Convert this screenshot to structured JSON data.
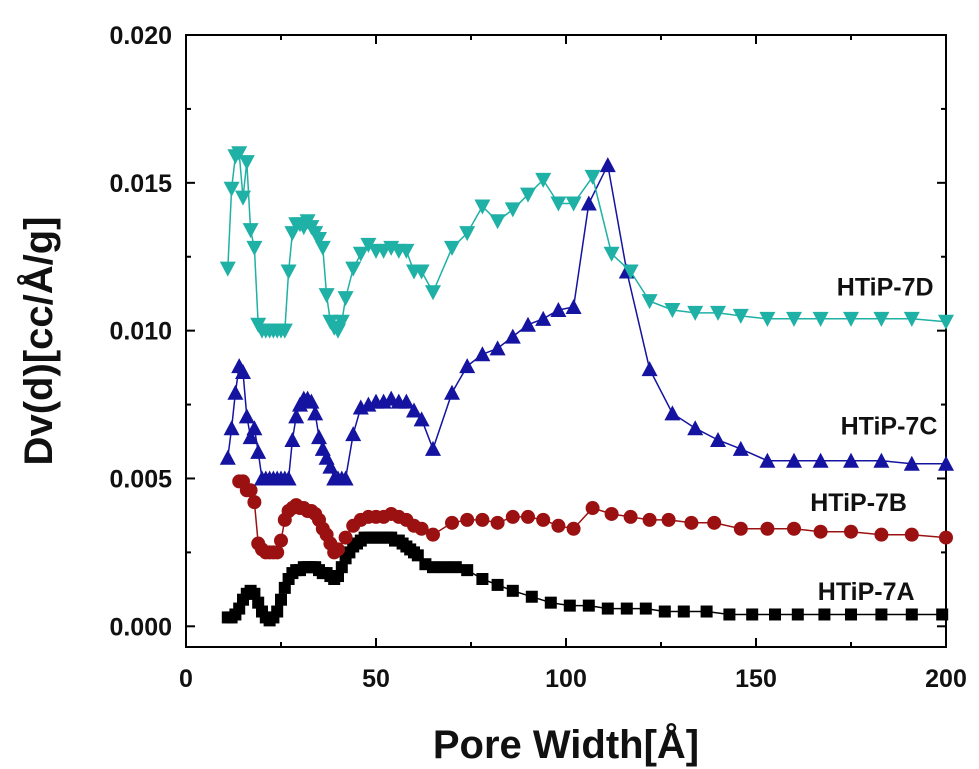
{
  "chart_data": {
    "type": "line",
    "title": "",
    "xlabel": "Pore Width[Å]",
    "ylabel": "Dv(d)[cc/Å/g]",
    "xlim": [
      0,
      200
    ],
    "ylim": [
      -0.0007,
      0.02
    ],
    "xticks": [
      0,
      50,
      100,
      150,
      200
    ],
    "xtick_labels": [
      "0",
      "50",
      "100",
      "150",
      "200"
    ],
    "yticks": [
      0.0,
      0.005,
      0.01,
      0.015,
      0.02
    ],
    "ytick_labels": [
      "0.000",
      "0.005",
      "0.010",
      "0.015",
      "0.020"
    ],
    "grid": false,
    "legend": "none",
    "series": [
      {
        "name": "HTiP-7A",
        "color": "#000000",
        "marker": "square",
        "x": [
          11,
          12,
          13,
          14,
          15,
          16,
          17,
          18,
          19,
          20,
          21,
          22,
          23,
          24,
          25,
          26,
          27,
          28,
          29,
          30,
          31,
          32,
          33,
          34,
          35,
          36,
          37,
          38,
          39,
          40,
          41,
          42,
          43,
          44,
          45,
          46,
          47,
          48,
          49,
          50,
          51,
          52,
          53,
          54,
          55,
          56,
          57,
          58,
          59,
          60,
          61,
          63,
          65,
          68,
          71,
          74,
          78,
          82,
          86,
          91,
          96,
          101,
          106,
          111,
          116,
          121,
          126,
          131,
          137,
          143,
          149,
          155,
          161,
          168,
          175,
          183,
          191,
          199
        ],
        "y": [
          0.0003,
          0.0003,
          0.0004,
          0.0006,
          0.0009,
          0.0011,
          0.0012,
          0.0011,
          0.0008,
          0.0005,
          0.0003,
          0.0002,
          0.0003,
          0.0005,
          0.0009,
          0.0013,
          0.0016,
          0.0018,
          0.0019,
          0.0019,
          0.002,
          0.002,
          0.002,
          0.002,
          0.0019,
          0.0018,
          0.0018,
          0.0017,
          0.0016,
          0.0017,
          0.002,
          0.0023,
          0.0025,
          0.0027,
          0.0028,
          0.0029,
          0.003,
          0.003,
          0.003,
          0.003,
          0.003,
          0.003,
          0.003,
          0.003,
          0.0029,
          0.0029,
          0.0028,
          0.0027,
          0.0026,
          0.0025,
          0.0024,
          0.0021,
          0.002,
          0.002,
          0.002,
          0.0019,
          0.0016,
          0.0014,
          0.0012,
          0.001,
          0.0008,
          0.0007,
          0.0007,
          0.0006,
          0.0006,
          0.0006,
          0.0005,
          0.0005,
          0.0005,
          0.0004,
          0.0004,
          0.0004,
          0.0004,
          0.0004,
          0.0004,
          0.0004,
          0.0004,
          0.0004
        ]
      },
      {
        "name": "HTiP-7B",
        "color": "#9b1111",
        "marker": "circle",
        "x": [
          14,
          15,
          16,
          17,
          18,
          19,
          20,
          21,
          22,
          23,
          24,
          25,
          26,
          27,
          28,
          29,
          30,
          31,
          32,
          33,
          34,
          35,
          36,
          37,
          38,
          39,
          40,
          42,
          44,
          46,
          48,
          50,
          52,
          54,
          56,
          58,
          60,
          62,
          65,
          70,
          74,
          78,
          82,
          86,
          90,
          94,
          98,
          102,
          107,
          112,
          117,
          122,
          127,
          133,
          139,
          146,
          153,
          160,
          167,
          175,
          183,
          191,
          200
        ],
        "y": [
          0.0049,
          0.0049,
          0.0046,
          0.0046,
          0.0042,
          0.0028,
          0.0026,
          0.0025,
          0.0025,
          0.0025,
          0.0025,
          0.0029,
          0.0036,
          0.0039,
          0.004,
          0.0041,
          0.004,
          0.004,
          0.0039,
          0.0039,
          0.0038,
          0.0036,
          0.0033,
          0.0031,
          0.0028,
          0.0025,
          0.0026,
          0.003,
          0.0034,
          0.0036,
          0.0037,
          0.0037,
          0.0037,
          0.0038,
          0.0037,
          0.0036,
          0.0034,
          0.0033,
          0.0031,
          0.0035,
          0.0036,
          0.0036,
          0.0035,
          0.0037,
          0.0037,
          0.0036,
          0.0034,
          0.0033,
          0.004,
          0.0038,
          0.0037,
          0.0036,
          0.0036,
          0.0035,
          0.0035,
          0.0033,
          0.0033,
          0.0033,
          0.0032,
          0.0032,
          0.0031,
          0.0031,
          0.003
        ]
      },
      {
        "name": "HTiP-7C",
        "color": "#1414a0",
        "marker": "triangle-up",
        "x": [
          11,
          12,
          13,
          14,
          15,
          16,
          17,
          18,
          19,
          20,
          21,
          22,
          23,
          24,
          25,
          26,
          27,
          28,
          29,
          30,
          31,
          32,
          33,
          34,
          35,
          36,
          37,
          38,
          39,
          40,
          41,
          42,
          44,
          46,
          48,
          50,
          52,
          54,
          56,
          58,
          60,
          62,
          65,
          70,
          74,
          78,
          82,
          86,
          90,
          94,
          98,
          102,
          106,
          111,
          116,
          122,
          128,
          134,
          140,
          146,
          153,
          160,
          167,
          175,
          183,
          191,
          200
        ],
        "y": [
          0.0057,
          0.0067,
          0.0079,
          0.0088,
          0.0086,
          0.0071,
          0.0064,
          0.0067,
          0.0059,
          0.005,
          0.005,
          0.005,
          0.005,
          0.005,
          0.005,
          0.005,
          0.005,
          0.0063,
          0.0071,
          0.0075,
          0.0077,
          0.0077,
          0.0076,
          0.0072,
          0.0064,
          0.006,
          0.0057,
          0.0054,
          0.005,
          0.005,
          0.005,
          0.005,
          0.0065,
          0.0074,
          0.0075,
          0.0076,
          0.0076,
          0.0077,
          0.0076,
          0.0076,
          0.0073,
          0.007,
          0.006,
          0.0079,
          0.0088,
          0.0092,
          0.0094,
          0.0098,
          0.0102,
          0.0104,
          0.0107,
          0.0108,
          0.0143,
          0.0156,
          0.012,
          0.0087,
          0.0072,
          0.0067,
          0.0063,
          0.006,
          0.0056,
          0.0056,
          0.0056,
          0.0056,
          0.0056,
          0.0055,
          0.0055
        ]
      },
      {
        "name": "HTiP-7D",
        "color": "#1fb0a6",
        "marker": "triangle-down",
        "x": [
          11,
          12,
          13,
          14,
          15,
          16,
          17,
          18,
          19,
          20,
          21,
          22,
          23,
          24,
          25,
          26,
          27,
          28,
          29,
          30,
          31,
          32,
          33,
          34,
          35,
          36,
          37,
          38,
          39,
          40,
          41,
          42,
          44,
          46,
          48,
          50,
          52,
          54,
          56,
          58,
          60,
          62,
          65,
          70,
          74,
          78,
          82,
          86,
          90,
          94,
          98,
          102,
          107,
          112,
          117,
          122,
          128,
          134,
          140,
          146,
          153,
          160,
          167,
          175,
          183,
          191,
          200
        ],
        "y": [
          0.0121,
          0.0148,
          0.0159,
          0.016,
          0.0145,
          0.0157,
          0.0134,
          0.0128,
          0.0102,
          0.01,
          0.01,
          0.01,
          0.01,
          0.01,
          0.01,
          0.01,
          0.012,
          0.0133,
          0.0136,
          0.0136,
          0.0135,
          0.0137,
          0.0135,
          0.0133,
          0.0131,
          0.0128,
          0.0112,
          0.0103,
          0.0101,
          0.01,
          0.0103,
          0.0111,
          0.0121,
          0.0126,
          0.0129,
          0.0127,
          0.0127,
          0.0128,
          0.0127,
          0.0127,
          0.012,
          0.012,
          0.0113,
          0.0128,
          0.0133,
          0.0142,
          0.0137,
          0.0141,
          0.0146,
          0.0151,
          0.0143,
          0.0143,
          0.0152,
          0.0126,
          0.012,
          0.011,
          0.0107,
          0.0106,
          0.0106,
          0.0105,
          0.0104,
          0.0104,
          0.0104,
          0.0104,
          0.0104,
          0.0104,
          0.0103
        ]
      }
    ],
    "annotations": [
      {
        "text": "HTiP-7D",
        "x": 184,
        "y": 0.0115
      },
      {
        "text": "HTiP-7C",
        "x": 185,
        "y": 0.0068
      },
      {
        "text": "HTiP-7B",
        "x": 177,
        "y": 0.0042
      },
      {
        "text": "HTiP-7A",
        "x": 179,
        "y": 0.0012
      }
    ]
  }
}
